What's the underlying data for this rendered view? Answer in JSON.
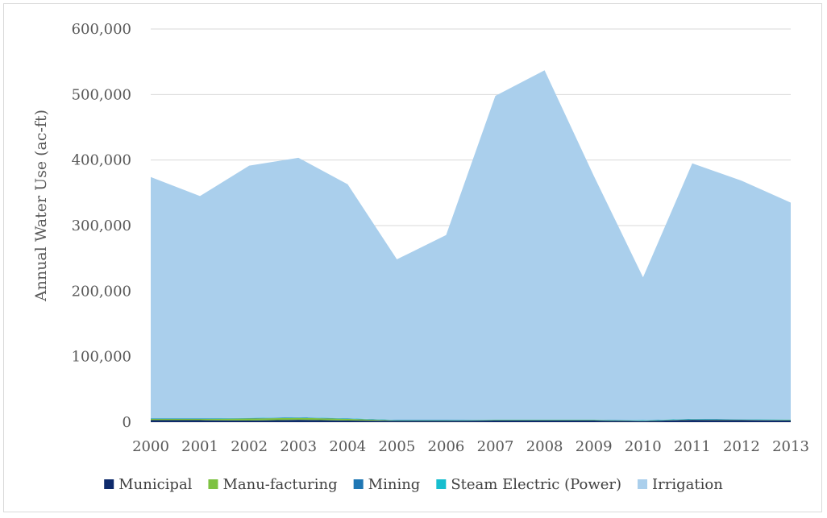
{
  "chart_data": {
    "type": "area",
    "stacked": true,
    "title": "",
    "xlabel": "",
    "ylabel": "Annual Water Use (ac-ft)",
    "ylim": [
      0,
      600000
    ],
    "yticks": [
      0,
      100000,
      200000,
      300000,
      400000,
      500000,
      600000
    ],
    "ytick_labels": [
      "0",
      "100,000",
      "200,000",
      "300,000",
      "400,000",
      "500,000",
      "600,000"
    ],
    "grid": true,
    "legend_position": "bottom",
    "x": [
      "2000",
      "2001",
      "2002",
      "2003",
      "2004",
      "2005",
      "2006",
      "2007",
      "2008",
      "2009",
      "2010",
      "2011",
      "2012",
      "2013"
    ],
    "series": [
      {
        "name": "Municipal",
        "color": "#0e2a6b",
        "values": [
          3000,
          3000,
          2500,
          3500,
          2500,
          2000,
          2000,
          2500,
          2500,
          2500,
          1500,
          3500,
          3000,
          2500
        ]
      },
      {
        "name": "Manu-facturing",
        "color": "#7ec242",
        "values": [
          2000,
          2000,
          3000,
          3000,
          2500,
          500,
          500,
          500,
          500,
          500,
          500,
          500,
          500,
          500
        ]
      },
      {
        "name": "Mining",
        "color": "#1f77b4",
        "values": [
          500,
          500,
          500,
          500,
          500,
          500,
          500,
          500,
          500,
          500,
          500,
          500,
          500,
          500
        ]
      },
      {
        "name": "Steam Electric (Power)",
        "color": "#17becf",
        "values": [
          500,
          500,
          500,
          500,
          500,
          500,
          500,
          500,
          500,
          500,
          500,
          500,
          500,
          500
        ]
      },
      {
        "name": "Irrigation",
        "color": "#aacfec",
        "values": [
          368000,
          339000,
          385000,
          396000,
          357000,
          245000,
          282000,
          494000,
          533000,
          372000,
          218000,
          390000,
          364000,
          331000
        ]
      }
    ]
  }
}
